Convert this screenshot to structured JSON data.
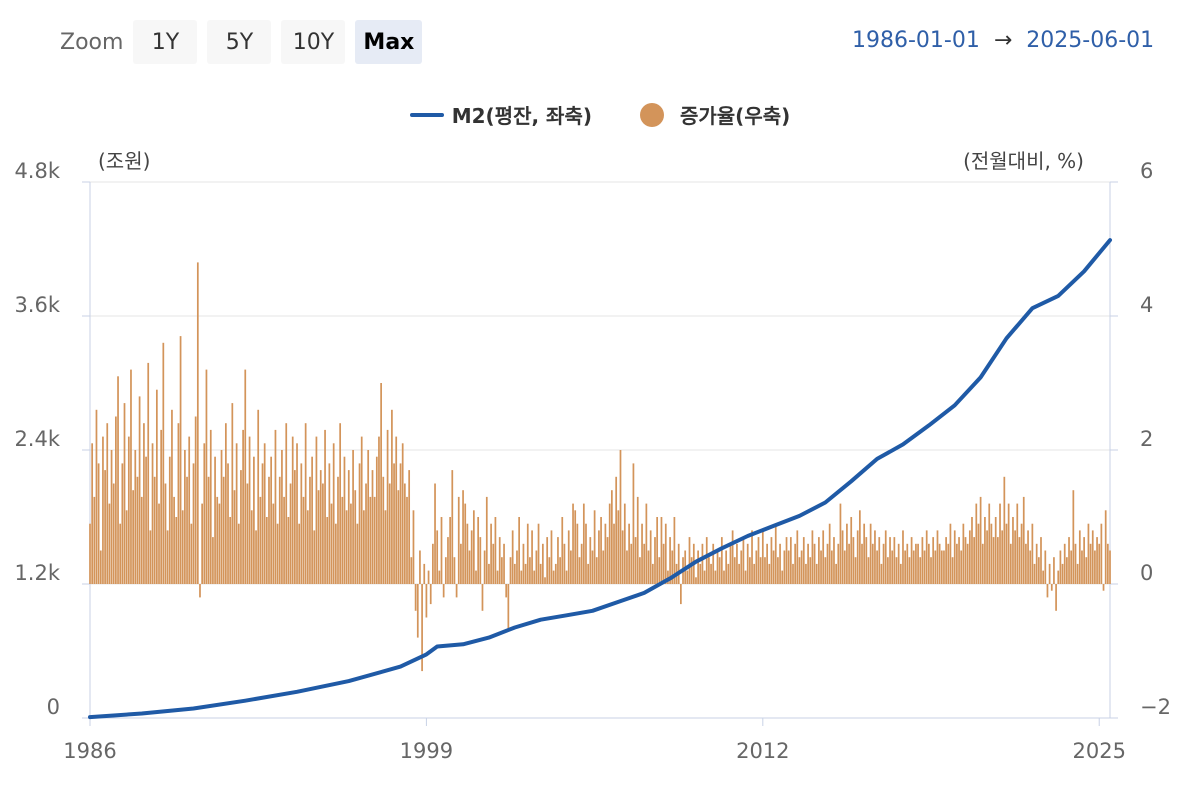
{
  "zoom": {
    "label": "Zoom",
    "buttons": [
      {
        "label": "1Y",
        "active": false
      },
      {
        "label": "5Y",
        "active": false
      },
      {
        "label": "10Y",
        "active": false
      },
      {
        "label": "Max",
        "active": true
      }
    ]
  },
  "range": {
    "from": "1986-01-01",
    "arrow": "→",
    "to": "2025-06-01"
  },
  "colors": {
    "m2": "#1f5aa6",
    "growth": "#d3945a",
    "accent": "#2f5fa8",
    "grid": "#e6e6e6"
  },
  "chart_data": {
    "type": "line+bar",
    "title": "",
    "legend_position": "top-center",
    "grid": true,
    "x_axis": {
      "ticks": [
        "1986",
        "1999",
        "2012",
        "2025"
      ],
      "range": [
        "1986-01",
        "2025-06"
      ]
    },
    "y_left": {
      "unit_label": "(조원)",
      "ticks": [
        "0",
        "1.2k",
        "2.4k",
        "3.6k",
        "4.8k"
      ],
      "range": [
        0,
        4800
      ]
    },
    "y_right": {
      "unit_label": "(전월대비, %)",
      "ticks": [
        "−2",
        "0",
        "2",
        "4",
        "6"
      ],
      "range": [
        -2,
        6
      ]
    },
    "series": [
      {
        "name": "M2(평잔, 좌축)",
        "type": "line",
        "axis": "left",
        "points": [
          [
            "1986-01",
            8
          ],
          [
            "1988-01",
            40
          ],
          [
            "1990-01",
            85
          ],
          [
            "1992-01",
            155
          ],
          [
            "1994-01",
            235
          ],
          [
            "1996-01",
            330
          ],
          [
            "1998-01",
            460
          ],
          [
            "1999-01",
            570
          ],
          [
            "1999-06",
            640
          ],
          [
            "2000-06",
            660
          ],
          [
            "2001-06",
            720
          ],
          [
            "2002-06",
            810
          ],
          [
            "2003-06",
            880
          ],
          [
            "2004-06",
            920
          ],
          [
            "2005-06",
            960
          ],
          [
            "2006-06",
            1040
          ],
          [
            "2007-06",
            1120
          ],
          [
            "2008-06",
            1250
          ],
          [
            "2009-06",
            1400
          ],
          [
            "2010-06",
            1520
          ],
          [
            "2011-06",
            1630
          ],
          [
            "2012-06",
            1720
          ],
          [
            "2013-06",
            1810
          ],
          [
            "2014-06",
            1930
          ],
          [
            "2015-06",
            2120
          ],
          [
            "2016-06",
            2320
          ],
          [
            "2017-06",
            2450
          ],
          [
            "2018-06",
            2620
          ],
          [
            "2019-06",
            2800
          ],
          [
            "2020-06",
            3050
          ],
          [
            "2021-06",
            3400
          ],
          [
            "2022-06",
            3670
          ],
          [
            "2023-06",
            3780
          ],
          [
            "2024-06",
            4000
          ],
          [
            "2025-06",
            4280
          ]
        ]
      },
      {
        "name": "증가율(우축)",
        "type": "bar",
        "axis": "right",
        "yearly": [
          {
            "year": 1986,
            "values": [
              0.9,
              2.1,
              1.3,
              2.6,
              1.8,
              0.5,
              2.2,
              1.7,
              2.4,
              1.2,
              2.0,
              1.5
            ]
          },
          {
            "year": 1987,
            "values": [
              2.5,
              3.1,
              0.9,
              1.8,
              2.7,
              1.1,
              2.2,
              3.2,
              1.4,
              2.0,
              1.6,
              2.8
            ]
          },
          {
            "year": 1988,
            "values": [
              1.3,
              2.4,
              1.9,
              3.3,
              0.8,
              2.1,
              1.6,
              2.9,
              1.2,
              2.3,
              3.6,
              1.5
            ]
          },
          {
            "year": 1989,
            "values": [
              0.8,
              1.9,
              2.6,
              1.3,
              1.0,
              2.4,
              3.7,
              1.1,
              2.0,
              1.6,
              2.2,
              0.9
            ]
          },
          {
            "year": 1990,
            "values": [
              1.8,
              2.5,
              4.8,
              -0.2,
              1.2,
              2.1,
              3.2,
              1.6,
              2.3,
              0.7,
              1.9,
              1.3
            ]
          },
          {
            "year": 1991,
            "values": [
              1.2,
              2.0,
              1.6,
              2.4,
              1.8,
              1.0,
              2.7,
              1.4,
              2.1,
              0.9,
              1.7,
              2.3
            ]
          },
          {
            "year": 1992,
            "values": [
              3.2,
              1.5,
              2.2,
              1.1,
              1.9,
              0.8,
              2.6,
              1.3,
              1.8,
              2.1,
              1.0,
              1.6
            ]
          },
          {
            "year": 1993,
            "values": [
              1.9,
              1.2,
              2.3,
              0.9,
              1.6,
              2.0,
              1.3,
              2.4,
              1.0,
              1.5,
              2.2,
              1.7
            ]
          },
          {
            "year": 1994,
            "values": [
              2.1,
              0.9,
              1.8,
              1.3,
              2.4,
              1.1,
              1.6,
              1.9,
              0.8,
              2.2,
              1.4,
              1.7
            ]
          },
          {
            "year": 1995,
            "values": [
              1.5,
              2.3,
              1.0,
              1.8,
              1.2,
              2.1,
              0.9,
              1.6,
              2.4,
              1.3,
              1.9,
              1.1
            ]
          },
          {
            "year": 1996,
            "values": [
              1.7,
              1.2,
              2.0,
              1.4,
              0.9,
              1.8,
              2.2,
              1.1,
              1.5,
              2.0,
              1.3,
              1.7
            ]
          },
          {
            "year": 1997,
            "values": [
              1.3,
              1.9,
              2.2,
              3.0,
              1.6,
              1.1,
              2.3,
              1.5,
              2.6,
              1.8,
              2.2,
              1.4
            ]
          },
          {
            "year": 1998,
            "values": [
              1.8,
              2.1,
              1.5,
              1.3,
              1.7,
              0.4,
              1.1,
              -0.4,
              -0.8,
              0.5,
              -1.3,
              0.3
            ]
          },
          {
            "year": 1999,
            "values": [
              -0.5,
              0.2,
              -0.3,
              0.6,
              1.5,
              0.8,
              0.2,
              1.0,
              -0.2,
              0.4,
              0.7,
              1.0
            ]
          },
          {
            "year": 2000,
            "values": [
              1.7,
              0.4,
              -0.2,
              1.3,
              0.6,
              1.4,
              1.2,
              0.9,
              0.5,
              0.8,
              1.1,
              0.2
            ]
          },
          {
            "year": 2001,
            "values": [
              1.0,
              0.7,
              -0.4,
              0.5,
              1.3,
              0.3,
              0.9,
              0.6,
              1.0,
              0.2,
              0.7,
              0.4
            ]
          },
          {
            "year": 2002,
            "values": [
              0.6,
              -0.2,
              -0.7,
              0.4,
              0.8,
              0.3,
              0.5,
              1.0,
              0.2,
              0.6,
              0.3,
              0.9
            ]
          },
          {
            "year": 2003,
            "values": [
              0.4,
              0.8,
              0.2,
              0.5,
              0.9,
              0.3,
              0.6,
              0.1,
              0.7,
              0.4,
              0.8,
              0.2
            ]
          },
          {
            "year": 2004,
            "values": [
              0.3,
              0.7,
              0.4,
              1.0,
              0.6,
              0.2,
              0.8,
              0.5,
              1.2,
              1.1,
              0.9,
              0.4
            ]
          },
          {
            "year": 2005,
            "values": [
              0.6,
              1.2,
              0.9,
              0.3,
              0.7,
              0.5,
              1.1,
              0.4,
              0.8,
              1.0,
              0.5,
              0.9
            ]
          },
          {
            "year": 2006,
            "values": [
              0.7,
              1.2,
              1.4,
              0.9,
              1.6,
              1.1,
              2.0,
              0.8,
              1.2,
              0.5,
              0.9,
              0.6
            ]
          },
          {
            "year": 2007,
            "values": [
              1.8,
              0.7,
              1.3,
              0.4,
              0.9,
              0.6,
              1.2,
              0.5,
              0.8,
              0.3,
              0.7,
              1.0
            ]
          },
          {
            "year": 2008,
            "values": [
              0.4,
              1.0,
              0.6,
              0.9,
              0.2,
              0.7,
              0.5,
              1.0,
              0.3,
              0.6,
              -0.3,
              0.4
            ]
          },
          {
            "year": 2009,
            "values": [
              0.5,
              0.2,
              0.7,
              0.4,
              0.6,
              0.1,
              0.5,
              0.3,
              0.6,
              0.2,
              0.7,
              0.4
            ]
          },
          {
            "year": 2010,
            "values": [
              0.3,
              0.6,
              0.2,
              0.5,
              0.4,
              0.7,
              0.2,
              0.5,
              0.3,
              0.6,
              0.8,
              0.4
            ]
          },
          {
            "year": 2011,
            "values": [
              0.6,
              0.3,
              0.5,
              0.7,
              0.2,
              0.6,
              0.4,
              0.8,
              0.3,
              0.5,
              0.7,
              0.4
            ]
          },
          {
            "year": 2012,
            "values": [
              0.8,
              0.4,
              0.6,
              0.3,
              0.7,
              0.5,
              0.9,
              0.4,
              0.6,
              0.2,
              0.5,
              0.7
            ]
          },
          {
            "year": 2013,
            "values": [
              0.5,
              0.7,
              0.3,
              0.6,
              0.8,
              0.4,
              0.5,
              0.7,
              0.3,
              0.6,
              0.4,
              0.8
            ]
          },
          {
            "year": 2014,
            "values": [
              0.6,
              0.3,
              0.7,
              0.5,
              0.8,
              0.4,
              0.6,
              0.9,
              0.5,
              0.7,
              0.3,
              0.6
            ]
          },
          {
            "year": 2015,
            "values": [
              1.2,
              0.8,
              0.5,
              0.9,
              0.6,
              1.0,
              0.7,
              0.4,
              0.8,
              1.1,
              0.6,
              0.9
            ]
          },
          {
            "year": 2016,
            "values": [
              0.7,
              0.4,
              0.9,
              0.6,
              0.8,
              0.5,
              0.7,
              0.3,
              0.6,
              0.8,
              0.4,
              0.7
            ]
          },
          {
            "year": 2017,
            "values": [
              0.5,
              0.7,
              0.4,
              0.6,
              0.3,
              0.8,
              0.5,
              0.6,
              0.4,
              0.7,
              0.5,
              0.6
            ]
          },
          {
            "year": 2018,
            "values": [
              0.6,
              0.4,
              0.7,
              0.5,
              0.8,
              0.6,
              0.4,
              0.7,
              0.5,
              0.8,
              0.6,
              0.5
            ]
          },
          {
            "year": 2019,
            "values": [
              0.5,
              0.7,
              0.6,
              0.9,
              0.4,
              0.8,
              0.6,
              0.7,
              0.5,
              0.9,
              0.7,
              0.6
            ]
          },
          {
            "year": 2020,
            "values": [
              0.8,
              1.0,
              0.7,
              1.2,
              0.9,
              1.3,
              0.6,
              1.0,
              0.8,
              1.2,
              0.9,
              0.7
            ]
          },
          {
            "year": 2021,
            "values": [
              1.0,
              0.7,
              1.2,
              0.8,
              1.6,
              0.9,
              1.2,
              0.6,
              1.0,
              0.8,
              1.2,
              0.7
            ]
          },
          {
            "year": 2022,
            "values": [
              0.9,
              1.3,
              0.6,
              0.8,
              0.5,
              0.9,
              0.3,
              0.6,
              0.4,
              0.7,
              0.2,
              0.5
            ]
          },
          {
            "year": 2023,
            "values": [
              -0.2,
              0.3,
              -0.1,
              0.4,
              -0.4,
              0.2,
              0.5,
              0.3,
              0.6,
              0.4,
              0.7,
              0.5
            ]
          },
          {
            "year": 2024,
            "values": [
              1.4,
              0.6,
              0.3,
              0.8,
              0.5,
              0.7,
              0.4,
              0.9,
              0.6,
              0.8,
              0.5,
              0.7
            ]
          },
          {
            "year": 2025,
            "values": [
              0.6,
              0.9,
              -0.1,
              1.1,
              0.6,
              0.5
            ]
          }
        ]
      }
    ]
  }
}
